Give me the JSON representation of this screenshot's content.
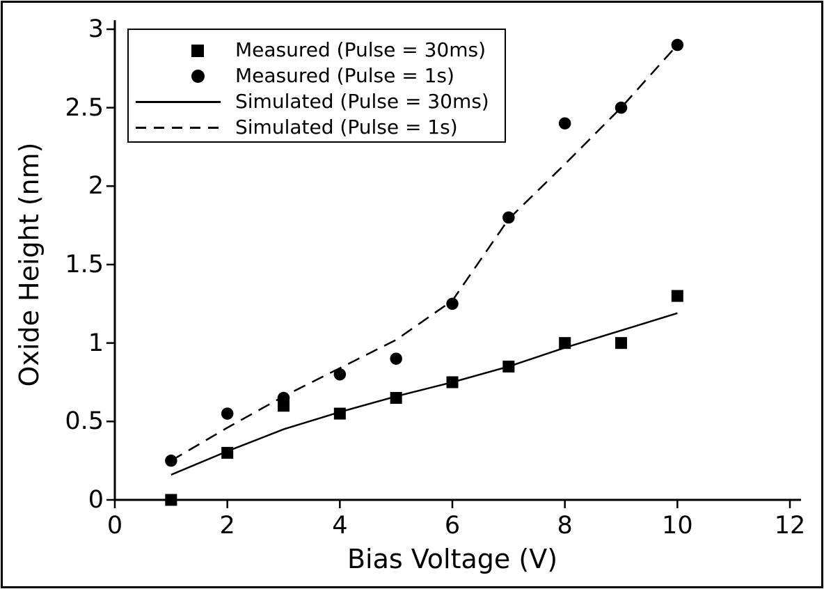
{
  "figure": {
    "background": "#ffffff",
    "border_color": "#000000",
    "ink_color": "#000000"
  },
  "chart_data": {
    "type": "scatter",
    "title": "",
    "xlabel": "Bias Voltage (V)",
    "ylabel": "Oxide Height (nm)",
    "xlim": [
      0,
      12.2
    ],
    "ylim": [
      0,
      3.05
    ],
    "grid": false,
    "legend_position": "upper-left",
    "x_tick_labels": [
      "0",
      "2",
      "4",
      "6",
      "8",
      "10",
      "12"
    ],
    "x_tick_values": [
      0,
      2,
      4,
      6,
      8,
      10,
      12
    ],
    "y_tick_labels": [
      "0",
      "0.5",
      "1",
      "1.5",
      "2",
      "2.5",
      "3"
    ],
    "y_tick_values": [
      0,
      0.5,
      1,
      1.5,
      2,
      2.5,
      3
    ],
    "x": [
      1,
      2,
      3,
      4,
      5,
      6,
      7,
      8,
      9,
      10
    ],
    "series": [
      {
        "name": "Measured (Pulse = 30ms)",
        "kind": "scatter",
        "marker": "square",
        "color": "#000000",
        "values": [
          0,
          0.3,
          0.6,
          0.55,
          0.65,
          0.75,
          0.85,
          1.0,
          1.0,
          1.3
        ]
      },
      {
        "name": "Measured (Pulse = 1s)",
        "kind": "scatter",
        "marker": "circle",
        "color": "#000000",
        "values": [
          0.25,
          0.55,
          0.65,
          0.8,
          0.9,
          1.25,
          1.8,
          2.4,
          2.5,
          2.9
        ]
      },
      {
        "name": "Simulated (Pulse = 30ms)",
        "kind": "line",
        "line_style": "solid",
        "color": "#000000",
        "values": [
          0.16,
          0.31,
          0.45,
          0.56,
          0.66,
          0.75,
          0.85,
          0.97,
          1.08,
          1.19
        ]
      },
      {
        "name": "Simulated (Pulse = 1s)",
        "kind": "line",
        "line_style": "dashed",
        "color": "#000000",
        "values": [
          0.25,
          0.46,
          0.66,
          0.84,
          1.02,
          1.27,
          1.79,
          2.14,
          2.5,
          2.9
        ]
      }
    ]
  }
}
